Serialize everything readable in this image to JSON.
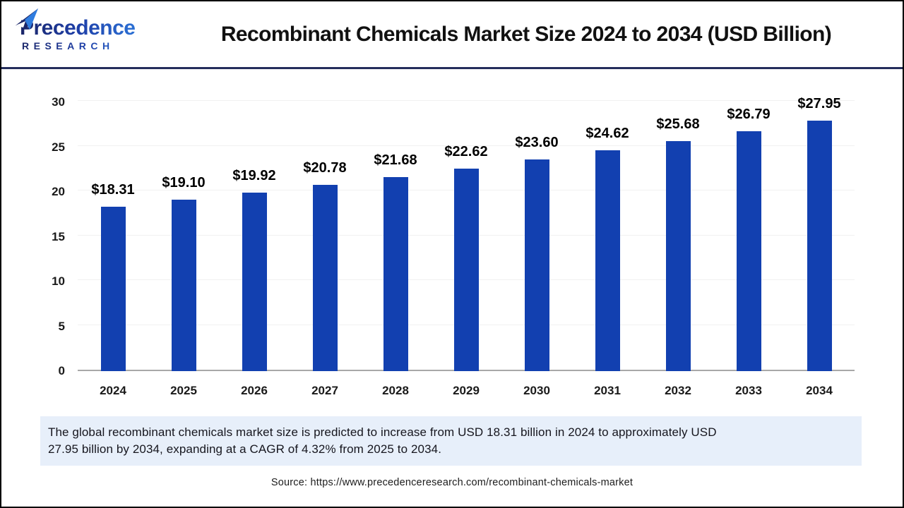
{
  "header": {
    "logo": {
      "name": "Precedence",
      "subtitle": "RESEARCH"
    },
    "title": "Recombinant Chemicals Market Size 2024 to 2034 (USD Billion)"
  },
  "chart_data": {
    "type": "bar",
    "title": "Recombinant Chemicals Market Size 2024 to 2034 (USD Billion)",
    "categories": [
      "2024",
      "2025",
      "2026",
      "2027",
      "2028",
      "2029",
      "2030",
      "2031",
      "2032",
      "2033",
      "2034"
    ],
    "values": [
      18.31,
      19.1,
      19.92,
      20.78,
      21.68,
      22.62,
      23.6,
      24.62,
      25.68,
      26.79,
      27.95
    ],
    "data_labels": [
      "$18.31",
      "$19.10",
      "$19.92",
      "$20.78",
      "$21.68",
      "$22.62",
      "$23.60",
      "$24.62",
      "$25.68",
      "$26.79",
      "$27.95"
    ],
    "unit": "USD Billion",
    "xlabel": "",
    "ylabel": "",
    "ylim": [
      0,
      30
    ],
    "yticks": [
      0,
      5,
      10,
      15,
      20,
      25,
      30
    ],
    "grid": true,
    "legend": false
  },
  "footer": {
    "description_lines": [
      "The global recombinant chemicals market size is predicted to increase from USD 18.31 billion in 2024 to approximately USD",
      "27.95 billion by 2034, expanding at a CAGR of 4.32% from 2025 to 2034."
    ],
    "source": "Source: https://www.precedenceresearch.com/recombinant-chemicals-market"
  },
  "colors": {
    "bar": "#1240B0",
    "grid_line": "#F1F1F1",
    "axis_line": "#A8A8A8",
    "header_divider": "#242D5C",
    "description_bg": "#E7EFFA",
    "logo_navy": "#1B2668",
    "logo_blue": "#2F7DE0"
  }
}
